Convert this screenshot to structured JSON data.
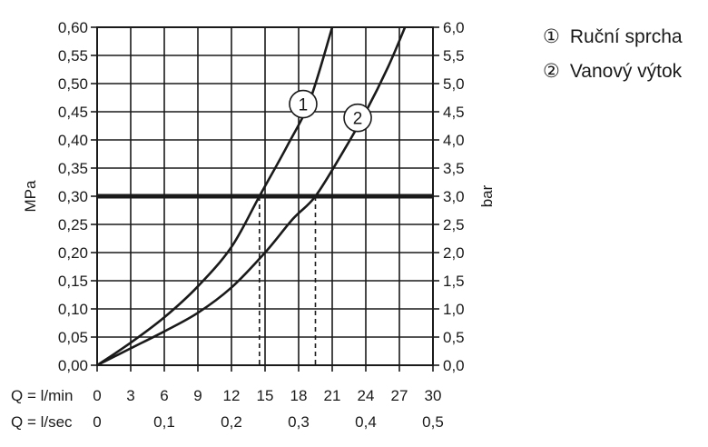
{
  "legend": {
    "items": [
      {
        "marker": "①",
        "label": "Ruční sprcha"
      },
      {
        "marker": "②",
        "label": "Vanový výtok"
      }
    ]
  },
  "chart_data": {
    "type": "line",
    "xlabel": "Q = l/min",
    "x2label": "Q = l/sec",
    "ylabel": "MPa",
    "y2label": "bar",
    "xlim": [
      0,
      30
    ],
    "ylim": [
      0,
      0.6
    ],
    "y2lim": [
      0,
      6.0
    ],
    "x_ticks": [
      "0",
      "3",
      "6",
      "9",
      "12",
      "15",
      "18",
      "21",
      "24",
      "27",
      "30"
    ],
    "x_tick_values": [
      0,
      3,
      6,
      9,
      12,
      15,
      18,
      21,
      24,
      27,
      30
    ],
    "x2_ticks": [
      "0",
      "0,1",
      "0,2",
      "0,3",
      "0,4",
      "0,5"
    ],
    "x2_tick_values": [
      0,
      6,
      12,
      18,
      24,
      30
    ],
    "y_ticks": [
      "0,00",
      "0,05",
      "0,10",
      "0,15",
      "0,20",
      "0,25",
      "0,30",
      "0,35",
      "0,40",
      "0,45",
      "0,50",
      "0,55",
      "0,60"
    ],
    "y_tick_values": [
      0,
      0.05,
      0.1,
      0.15,
      0.2,
      0.25,
      0.3,
      0.35,
      0.4,
      0.45,
      0.5,
      0.55,
      0.6
    ],
    "y2_ticks": [
      "0,0",
      "0,5",
      "1,0",
      "1,5",
      "2,0",
      "2,5",
      "3,0",
      "3,5",
      "4,0",
      "4,5",
      "5,0",
      "5,5",
      "6,0"
    ],
    "grid": true,
    "reference_line": {
      "y": 0.3
    },
    "drop_lines": [
      {
        "x": 14.5,
        "y": 0.3
      },
      {
        "x": 19.5,
        "y": 0.3
      }
    ],
    "series": [
      {
        "label": "1",
        "x": [
          0,
          3,
          6,
          9,
          12,
          14.5,
          17,
          19,
          21
        ],
        "y": [
          0,
          0.04,
          0.085,
          0.14,
          0.21,
          0.3,
          0.39,
          0.47,
          0.6
        ]
      },
      {
        "label": "2",
        "x": [
          0,
          3,
          6,
          9,
          12,
          15,
          17.5,
          19.5,
          22,
          24,
          26,
          27.5
        ],
        "y": [
          0,
          0.03,
          0.06,
          0.093,
          0.138,
          0.2,
          0.26,
          0.3,
          0.38,
          0.45,
          0.53,
          0.6
        ]
      }
    ]
  }
}
